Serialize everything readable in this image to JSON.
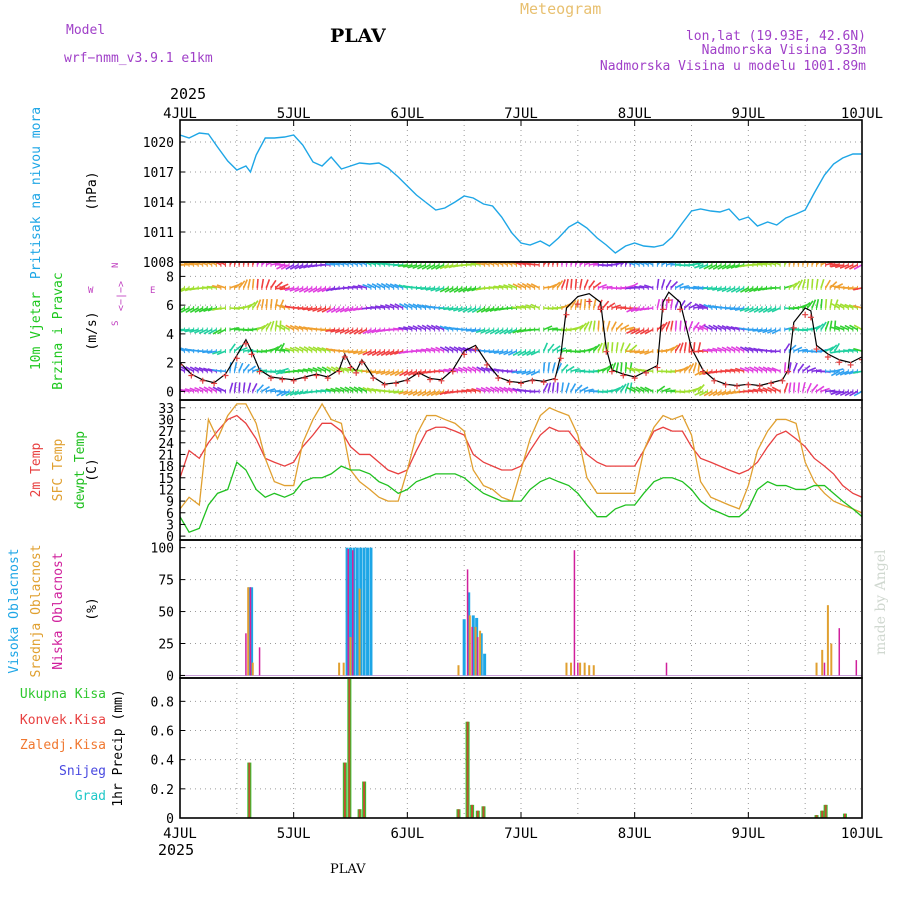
{
  "header": {
    "model_label": "Model",
    "model_name": "wrf−nmm_v3.9.1  e1km",
    "title": "PLAV",
    "meteogram": "Meteogram",
    "lonlat": "lon,lat (19.93E, 42.6N)",
    "elevation": "Nadmorska Visina 933m",
    "model_elevation": "Nadmorska Visina u modelu 1001.89m",
    "year_top": "2025",
    "year_bottom": "2025",
    "footer": "PLAV",
    "watermark": "made by Angel"
  },
  "colors": {
    "pressure": "#1ea6e6",
    "wind_label": "#1ec81e",
    "compass": "#c040c0",
    "t2m": "#e84040",
    "sfc": "#e0a030",
    "dew": "#20c020",
    "high_cloud": "#1ea6e6",
    "mid_cloud": "#e0a030",
    "low_cloud": "#d0209c",
    "total_precip": "#2ec82e",
    "conv_precip": "#e84040",
    "frz_precip": "#f07830",
    "snow": "#4848e0",
    "hail": "#20c8c8",
    "header_purple": "#a040c8",
    "meteogram": "#e8c070"
  },
  "chart_data": [
    {
      "id": "pressure",
      "type": "line",
      "ylabel": "(hPa)",
      "side_labels": [
        "Pritisak na nivou mora"
      ],
      "yticks": [
        1008,
        1011,
        1014,
        1017,
        1020
      ],
      "ylim": [
        1008,
        1022.2
      ],
      "x_days": [
        0,
        0.08,
        0.17,
        0.25,
        0.33,
        0.42,
        0.5,
        0.58,
        0.62,
        0.67,
        0.75,
        0.83,
        0.92,
        1.0,
        1.08,
        1.17,
        1.25,
        1.33,
        1.42,
        1.5,
        1.58,
        1.67,
        1.75,
        1.83,
        1.92,
        2.0,
        2.08,
        2.17,
        2.25,
        2.33,
        2.42,
        2.5,
        2.58,
        2.67,
        2.75,
        2.83,
        2.92,
        3.0,
        3.08,
        3.17,
        3.25,
        3.33,
        3.42,
        3.5,
        3.58,
        3.67,
        3.75,
        3.83,
        3.92,
        4.0,
        4.08,
        4.17,
        4.25,
        4.33,
        4.42,
        4.5,
        4.58,
        4.67,
        4.75,
        4.83,
        4.92,
        5.0,
        5.08,
        5.17,
        5.25,
        5.33,
        5.42,
        5.5,
        5.58,
        5.67,
        5.75,
        5.83,
        5.92,
        6.0
      ],
      "values": [
        1020.7,
        1020.4,
        1020.9,
        1020.8,
        1019.5,
        1018.1,
        1017.2,
        1017.6,
        1017.0,
        1018.7,
        1020.4,
        1020.4,
        1020.5,
        1020.7,
        1019.7,
        1018.0,
        1017.6,
        1018.5,
        1017.3,
        1017.6,
        1017.9,
        1017.8,
        1017.9,
        1017.4,
        1016.5,
        1015.6,
        1014.7,
        1013.9,
        1013.2,
        1013.4,
        1014.0,
        1014.6,
        1014.4,
        1013.8,
        1013.6,
        1012.5,
        1010.9,
        1009.9,
        1009.7,
        1010.1,
        1009.6,
        1010.4,
        1011.5,
        1012.0,
        1011.4,
        1010.4,
        1009.7,
        1008.9,
        1009.6,
        1009.9,
        1009.6,
        1009.5,
        1009.7,
        1010.5,
        1011.9,
        1013.1,
        1013.3,
        1013.1,
        1013.0,
        1013.3,
        1012.2,
        1012.5,
        1011.6,
        1012.0,
        1011.7,
        1012.4,
        1012.8,
        1013.2,
        1014.9,
        1016.7,
        1017.8,
        1018.4,
        1018.8,
        1018.8
      ]
    },
    {
      "id": "wind",
      "type": "line",
      "ylabel": "(m/s)",
      "side_labels": [
        "10m Vjetar",
        "Brzina i Pravac"
      ],
      "compass": [
        "W",
        "<−|−>",
        "E",
        "S",
        "N"
      ],
      "yticks": [
        0,
        2,
        4,
        6,
        8
      ],
      "ylim": [
        -0.6,
        9.0
      ],
      "barb_levels": [
        0.0,
        1.4,
        2.8,
        4.3,
        5.8,
        7.2,
        8.8
      ],
      "x_days": [
        0,
        0.1,
        0.2,
        0.3,
        0.4,
        0.5,
        0.58,
        0.63,
        0.7,
        0.8,
        0.9,
        1.0,
        1.1,
        1.2,
        1.3,
        1.4,
        1.45,
        1.5,
        1.55,
        1.6,
        1.7,
        1.8,
        1.9,
        2.0,
        2.1,
        2.2,
        2.3,
        2.4,
        2.5,
        2.6,
        2.7,
        2.8,
        2.9,
        3.0,
        3.1,
        3.2,
        3.3,
        3.35,
        3.4,
        3.5,
        3.6,
        3.7,
        3.75,
        3.8,
        3.9,
        4.0,
        4.1,
        4.2,
        4.25,
        4.3,
        4.4,
        4.5,
        4.6,
        4.7,
        4.8,
        4.9,
        5.0,
        5.1,
        5.2,
        5.3,
        5.35,
        5.4,
        5.5,
        5.55,
        5.6,
        5.7,
        5.8,
        5.9,
        6.0
      ],
      "values": [
        2.0,
        1.2,
        0.8,
        0.6,
        1.2,
        2.5,
        3.6,
        2.8,
        1.5,
        1.0,
        0.9,
        0.8,
        1.0,
        1.2,
        1.0,
        1.5,
        2.6,
        1.8,
        1.4,
        2.2,
        1.0,
        0.5,
        0.6,
        0.8,
        1.3,
        0.9,
        0.8,
        1.5,
        2.8,
        3.2,
        2.0,
        1.0,
        0.7,
        0.6,
        0.8,
        0.7,
        0.9,
        2.5,
        5.8,
        6.6,
        6.8,
        6.2,
        3.0,
        1.5,
        1.2,
        1.0,
        1.4,
        1.8,
        6.2,
        6.9,
        6.2,
        3.0,
        1.5,
        0.8,
        0.5,
        0.4,
        0.5,
        0.4,
        0.6,
        0.8,
        1.5,
        4.8,
        5.8,
        5.6,
        3.2,
        2.6,
        2.2,
        2.0,
        2.4
      ]
    },
    {
      "id": "temperature",
      "type": "line",
      "ylabel": "(C)",
      "side_labels": [
        "2m Temp",
        "SFC Temp",
        "dewpt Temp"
      ],
      "yticks": [
        0,
        3,
        6,
        9,
        12,
        15,
        18,
        21,
        24,
        27,
        30,
        33
      ],
      "ylim": [
        -1,
        35
      ],
      "x_days": [
        0,
        0.08,
        0.17,
        0.25,
        0.33,
        0.42,
        0.5,
        0.58,
        0.67,
        0.75,
        0.83,
        0.92,
        1.0,
        1.08,
        1.17,
        1.25,
        1.33,
        1.42,
        1.5,
        1.58,
        1.67,
        1.75,
        1.83,
        1.92,
        2.0,
        2.08,
        2.17,
        2.25,
        2.33,
        2.42,
        2.5,
        2.58,
        2.67,
        2.75,
        2.83,
        2.92,
        3.0,
        3.08,
        3.17,
        3.25,
        3.33,
        3.42,
        3.5,
        3.58,
        3.67,
        3.75,
        3.83,
        3.92,
        4.0,
        4.08,
        4.17,
        4.25,
        4.33,
        4.42,
        4.5,
        4.58,
        4.67,
        4.75,
        4.83,
        4.92,
        5.0,
        5.08,
        5.17,
        5.25,
        5.33,
        5.42,
        5.5,
        5.58,
        5.67,
        5.75,
        5.83,
        5.92,
        6.0
      ],
      "series": [
        {
          "name": "2m Temp",
          "values": [
            15,
            22,
            20,
            24,
            27,
            30,
            31,
            29,
            25,
            20,
            19,
            18,
            19,
            23,
            26,
            29,
            29,
            27,
            23,
            21,
            21,
            19,
            17,
            16,
            17,
            22,
            27,
            28,
            28,
            27,
            26,
            21,
            19,
            18,
            17,
            17,
            18,
            22,
            26,
            28,
            27,
            27,
            24,
            21,
            19,
            18,
            18,
            18,
            18,
            22,
            27,
            28,
            27,
            27,
            23,
            20,
            19,
            18,
            17,
            16,
            17,
            19,
            23,
            26,
            27,
            25,
            23,
            20,
            18,
            16,
            13,
            11,
            10
          ]
        },
        {
          "name": "SFC Temp",
          "values": [
            7,
            10,
            8,
            30,
            25,
            31,
            34,
            34,
            29,
            20,
            14,
            13,
            13,
            24,
            30,
            34,
            30,
            29,
            17,
            14,
            12,
            10,
            9,
            9,
            17,
            26,
            31,
            31,
            30,
            29,
            27,
            17,
            13,
            12,
            10,
            9,
            17,
            25,
            31,
            33,
            32,
            31,
            26,
            15,
            11,
            11,
            11,
            11,
            11,
            22,
            28,
            31,
            30,
            31,
            26,
            14,
            10,
            9,
            8,
            7,
            13,
            22,
            27,
            30,
            30,
            29,
            19,
            14,
            11,
            9,
            8,
            7,
            6
          ]
        },
        {
          "name": "dewpt Temp",
          "values": [
            5,
            1,
            2,
            8,
            11,
            12,
            19,
            17,
            12,
            10,
            11,
            10,
            11,
            14,
            15,
            15,
            16,
            18,
            17,
            17,
            16,
            14,
            13,
            11,
            12,
            14,
            15,
            16,
            16,
            16,
            15,
            13,
            11,
            10,
            9,
            9,
            9,
            12,
            14,
            15,
            14,
            13,
            11,
            8,
            5,
            5,
            7,
            8,
            8,
            11,
            14,
            15,
            15,
            14,
            12,
            9,
            7,
            6,
            5,
            5,
            7,
            12,
            14,
            13,
            13,
            12,
            12,
            13,
            13,
            11,
            9,
            7,
            5
          ]
        }
      ]
    },
    {
      "id": "cloud",
      "type": "bar",
      "ylabel": "(%)",
      "side_labels": [
        "Visoka Oblacnost",
        "Srednja Oblacnost",
        "Niska Oblacnost"
      ],
      "yticks": [
        0,
        25,
        50,
        75,
        100
      ],
      "ylim": [
        -2,
        106
      ],
      "high": [
        [
          0.61,
          69
        ],
        [
          0.63,
          69
        ],
        [
          1.47,
          100
        ],
        [
          1.5,
          100
        ],
        [
          1.53,
          100
        ],
        [
          1.56,
          100
        ],
        [
          1.59,
          100
        ],
        [
          1.62,
          100
        ],
        [
          1.65,
          100
        ],
        [
          1.68,
          100
        ],
        [
          2.5,
          44
        ],
        [
          2.54,
          65
        ],
        [
          2.58,
          47
        ],
        [
          2.61,
          45
        ],
        [
          2.65,
          33
        ],
        [
          2.68,
          17
        ]
      ],
      "mid": [
        [
          0.6,
          69
        ],
        [
          0.64,
          10
        ],
        [
          1.4,
          10
        ],
        [
          1.44,
          10
        ],
        [
          1.5,
          30
        ],
        [
          1.58,
          68
        ],
        [
          2.45,
          8
        ],
        [
          2.55,
          47
        ],
        [
          2.6,
          38
        ],
        [
          2.64,
          35
        ],
        [
          3.4,
          10
        ],
        [
          3.44,
          10
        ],
        [
          3.52,
          10
        ],
        [
          3.56,
          10
        ],
        [
          3.6,
          8
        ],
        [
          3.64,
          8
        ],
        [
          5.6,
          10
        ],
        [
          5.65,
          20
        ],
        [
          5.7,
          55
        ],
        [
          5.73,
          25
        ]
      ],
      "low": [
        [
          0.58,
          33
        ],
        [
          0.62,
          69
        ],
        [
          0.7,
          22
        ],
        [
          1.48,
          99
        ],
        [
          1.52,
          98
        ],
        [
          2.53,
          83
        ],
        [
          2.57,
          38
        ],
        [
          2.62,
          30
        ],
        [
          3.47,
          98
        ],
        [
          3.5,
          10
        ],
        [
          4.28,
          10
        ],
        [
          5.67,
          10
        ],
        [
          5.8,
          37
        ],
        [
          5.95,
          12
        ]
      ]
    },
    {
      "id": "precip",
      "type": "bar",
      "ylabel": "1hr Precip (mm)",
      "side_labels": [
        "Ukupna Kisa",
        "Konvek.Kisa",
        "Zaledj.Kisa",
        "Snijeg",
        "Grad"
      ],
      "yticks": [
        0,
        0.2,
        0.4,
        0.6,
        0.8
      ],
      "ylim": [
        0,
        0.96
      ],
      "total": [
        [
          0.61,
          0.38
        ],
        [
          1.45,
          0.38
        ],
        [
          1.49,
          0.97
        ],
        [
          1.58,
          0.06
        ],
        [
          1.62,
          0.25
        ],
        [
          2.45,
          0.06
        ],
        [
          2.53,
          0.66
        ],
        [
          2.57,
          0.09
        ],
        [
          2.62,
          0.05
        ],
        [
          2.67,
          0.08
        ],
        [
          5.6,
          0.02
        ],
        [
          5.65,
          0.05
        ],
        [
          5.68,
          0.09
        ],
        [
          5.85,
          0.03
        ]
      ],
      "conv": [
        [
          0.61,
          0.38
        ],
        [
          1.45,
          0.38
        ],
        [
          1.49,
          0.97
        ],
        [
          1.58,
          0.06
        ],
        [
          1.62,
          0.25
        ],
        [
          2.45,
          0.06
        ],
        [
          2.53,
          0.66
        ],
        [
          2.57,
          0.09
        ],
        [
          2.62,
          0.05
        ],
        [
          2.67,
          0.08
        ],
        [
          5.6,
          0.02
        ],
        [
          5.65,
          0.05
        ],
        [
          5.68,
          0.09
        ],
        [
          5.85,
          0.03
        ]
      ]
    }
  ],
  "x_axis": {
    "labels": [
      "4JUL",
      "5JUL",
      "6JUL",
      "7JUL",
      "8JUL",
      "9JUL",
      "10JUL"
    ]
  }
}
